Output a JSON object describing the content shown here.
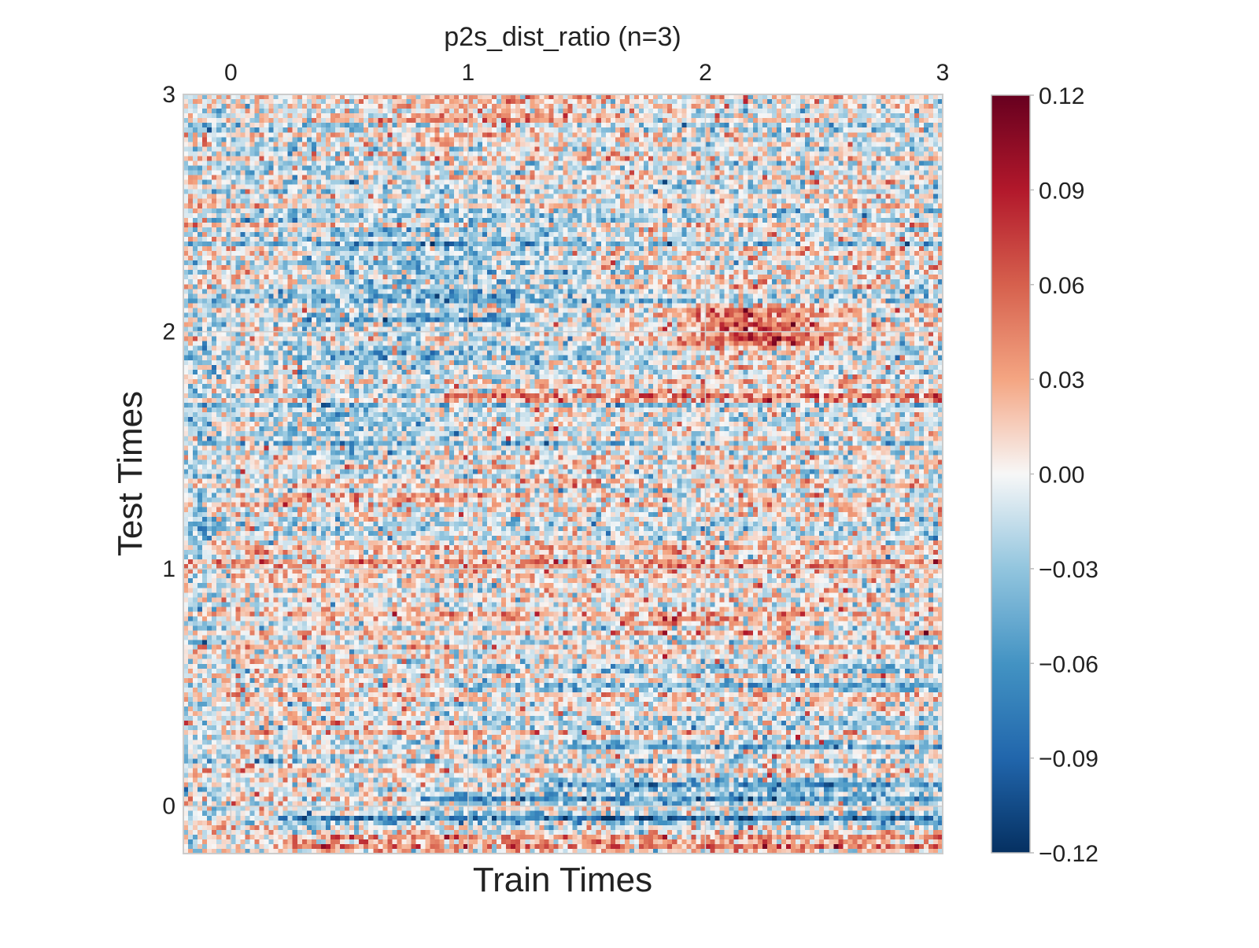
{
  "chart_data": {
    "type": "heatmap",
    "title": "p2s_dist_ratio (n=3)",
    "xlabel": "Train Times",
    "ylabel": "Test Times",
    "x_ticks": [
      0,
      1,
      2,
      3
    ],
    "y_ticks": [
      0,
      1,
      2,
      3
    ],
    "xlim": [
      -0.2,
      3.0
    ],
    "ylim": [
      -0.2,
      3.0
    ],
    "x_tick_position": "top",
    "grid": true,
    "grid_resolution": 160,
    "colormap": "RdBu_r",
    "colorbar": {
      "vmin": -0.12,
      "vmax": 0.12,
      "ticks": [
        0.12,
        0.09,
        0.06,
        0.03,
        0.0,
        -0.03,
        -0.06,
        -0.09,
        -0.12
      ],
      "tick_labels": [
        "0.12",
        "0.09",
        "0.06",
        "0.03",
        "0.00",
        "−0.03",
        "−0.06",
        "−0.09",
        "−0.12"
      ],
      "placement": "right"
    },
    "features": {
      "noise_sd": 0.026,
      "bands": [
        {
          "test_time": -0.17,
          "value": 0.045,
          "x_from": 0.2,
          "x_to": 3.0
        },
        {
          "test_time": -0.13,
          "value": 0.03,
          "x_from": 0.2,
          "x_to": 3.0
        },
        {
          "test_time": -0.09,
          "value": -0.025,
          "x_from": 0.2,
          "x_to": 3.0
        },
        {
          "test_time": -0.05,
          "value": -0.075,
          "x_from": 0.2,
          "x_to": 3.0
        },
        {
          "test_time": 0.03,
          "value": -0.065,
          "x_from": 0.8,
          "x_to": 3.0
        },
        {
          "test_time": 0.09,
          "value": -0.055,
          "x_from": 1.3,
          "x_to": 3.0
        },
        {
          "test_time": 0.25,
          "value": -0.045,
          "x_from": 1.3,
          "x_to": 3.0
        },
        {
          "test_time": 0.35,
          "value": -0.04,
          "x_from": 1.0,
          "x_to": 3.0
        },
        {
          "test_time": 0.5,
          "value": -0.04,
          "x_from": 1.0,
          "x_to": 3.0
        },
        {
          "test_time": 0.58,
          "value": -0.035,
          "x_from": 1.0,
          "x_to": 3.0
        },
        {
          "test_time": 0.78,
          "value": 0.035,
          "x_from": 1.6,
          "x_to": 2.4
        },
        {
          "test_time": 1.3,
          "value": 0.04,
          "x_from": 0.2,
          "x_to": 1.0
        },
        {
          "test_time": 1.73,
          "value": 0.055,
          "x_from": 0.9,
          "x_to": 3.0
        },
        {
          "test_time": 2.05,
          "value": -0.04,
          "x_from": 0.3,
          "x_to": 1.2
        }
      ],
      "blobs": [
        {
          "x": 2.2,
          "y": 2.0,
          "sx": 0.35,
          "sy": 0.12,
          "value": 0.065
        },
        {
          "x": 0.9,
          "y": 2.3,
          "sx": 0.65,
          "sy": 0.35,
          "value": -0.03
        },
        {
          "x": 1.1,
          "y": 2.85,
          "sx": 0.5,
          "sy": 0.25,
          "value": 0.025
        },
        {
          "x": 0.5,
          "y": 1.6,
          "sx": 0.35,
          "sy": 0.25,
          "value": -0.02
        },
        {
          "x": -0.12,
          "y": 1.1,
          "sx": 0.08,
          "sy": 0.9,
          "value": -0.02
        }
      ]
    }
  }
}
